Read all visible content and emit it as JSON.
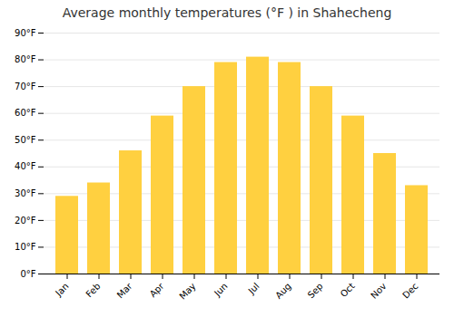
{
  "chart_data": {
    "type": "bar",
    "title": "Average monthly temperatures (°F ) in Shahecheng",
    "categories": [
      "Jan",
      "Feb",
      "Mar",
      "Apr",
      "May",
      "Jun",
      "Jul",
      "Aug",
      "Sep",
      "Oct",
      "Nov",
      "Dec"
    ],
    "values": [
      29,
      34,
      46,
      59,
      70,
      79,
      81,
      79,
      70,
      59,
      45,
      33
    ],
    "color": "#FFD040",
    "ylim": [
      0,
      90
    ],
    "yticks": [
      {
        "value": 0,
        "label": "0°F"
      },
      {
        "value": 10,
        "label": "10°F"
      },
      {
        "value": 20,
        "label": "20°F"
      },
      {
        "value": 30,
        "label": "30°F"
      },
      {
        "value": 40,
        "label": "40°F"
      },
      {
        "value": 50,
        "label": "50°F"
      },
      {
        "value": 60,
        "label": "60°F"
      },
      {
        "value": 70,
        "label": "70°F"
      },
      {
        "value": 80,
        "label": "80°F"
      },
      {
        "value": 90,
        "label": "90°F"
      }
    ],
    "grid": true
  }
}
